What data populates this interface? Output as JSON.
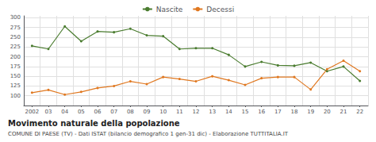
{
  "chart_data": {
    "type": "line",
    "title": "Movimento naturale della popolazione",
    "subtitle": "COMUNE DI PAESE (TV) - Dati ISTAT (bilancio demografico 1 gen-31 dic) - Elaborazione TUTTITALIA.IT",
    "categories": [
      "2002",
      "03",
      "04",
      "05",
      "06",
      "07",
      "08",
      "09",
      "10",
      "11",
      "12",
      "13",
      "14",
      "15",
      "16",
      "17",
      "18",
      "19",
      "20",
      "21",
      "22"
    ],
    "series": [
      {
        "name": "Nascite",
        "color": "#4a7c2f",
        "values": [
          228,
          220,
          278,
          240,
          265,
          263,
          272,
          255,
          253,
          220,
          222,
          222,
          205,
          175,
          187,
          178,
          177,
          185,
          163,
          175,
          138
        ]
      },
      {
        "name": "Decessi",
        "color": "#e07820",
        "values": [
          108,
          115,
          103,
          110,
          120,
          125,
          137,
          130,
          148,
          143,
          137,
          150,
          140,
          128,
          145,
          148,
          148,
          116,
          168,
          190,
          163
        ]
      }
    ],
    "ylim": [
      75,
      305
    ],
    "yticks": [
      100,
      125,
      150,
      175,
      200,
      225,
      250,
      275,
      300
    ],
    "grid": true,
    "legend": "top",
    "marker": "circle",
    "line_style": "solid"
  }
}
